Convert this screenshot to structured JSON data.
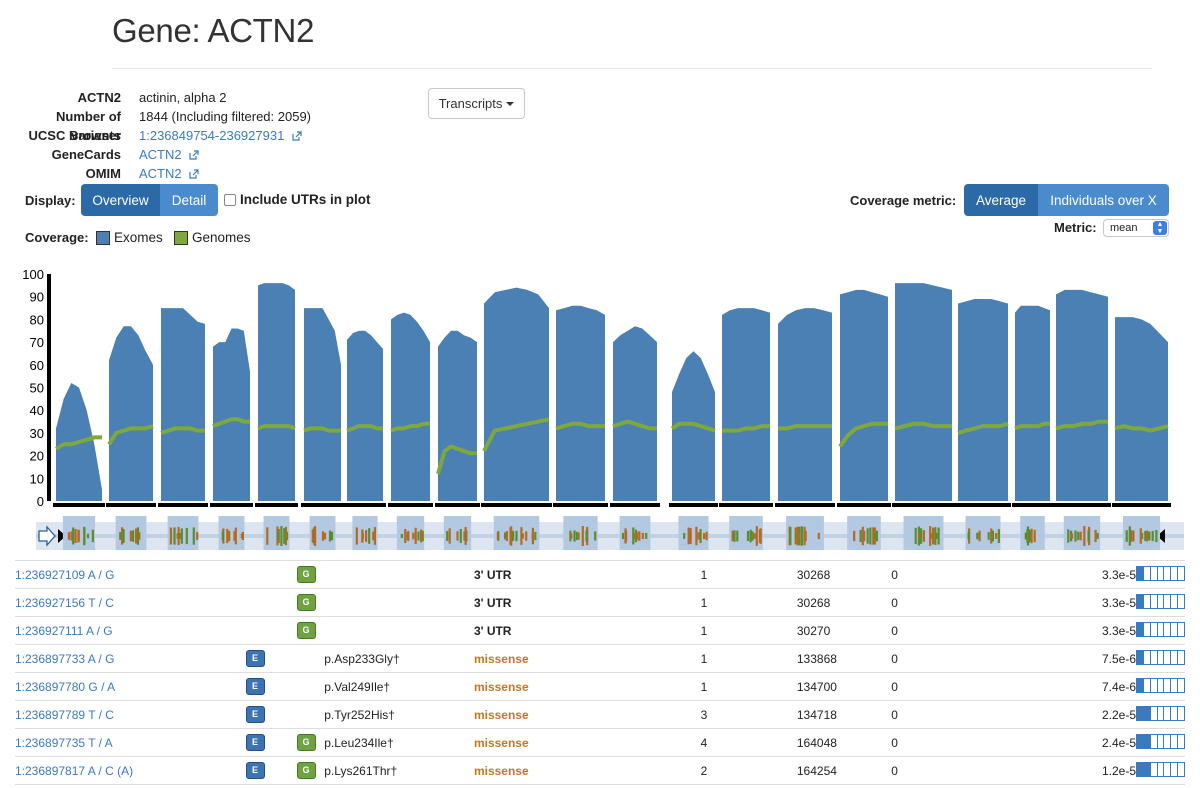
{
  "page": {
    "title": "Gene: ACTN2"
  },
  "gene_info": {
    "rows": [
      {
        "key": "ACTN2",
        "value": "actinin, alpha 2",
        "link": false
      },
      {
        "key": "Number of variants",
        "value": "1844 (Including filtered: 2059)",
        "link": false
      },
      {
        "key": "UCSC Browser",
        "value": "1:236849754-236927931",
        "link": true
      },
      {
        "key": "GeneCards",
        "value": "ACTN2",
        "link": true
      },
      {
        "key": "OMIM",
        "value": "ACTN2",
        "link": true
      }
    ]
  },
  "transcripts_button": {
    "label": "Transcripts"
  },
  "display": {
    "label": "Display:",
    "options": [
      "Overview",
      "Detail"
    ],
    "selected": "Overview",
    "include_utrs_label": "Include UTRs in plot",
    "include_utrs_checked": false
  },
  "coverage": {
    "label": "Coverage:",
    "legend": [
      {
        "name": "Exomes",
        "color": "#4a80b4"
      },
      {
        "name": "Genomes",
        "color": "#7ea83c"
      }
    ]
  },
  "coverage_metric": {
    "label": "Coverage metric:",
    "options": [
      "Average",
      "Individuals over X"
    ],
    "selected": "Average",
    "metric_label": "Metric:",
    "metric_value": "mean"
  },
  "chart_data": {
    "type": "area",
    "ylim": [
      0,
      100
    ],
    "y_ticks": [
      0,
      10,
      20,
      30,
      40,
      50,
      60,
      70,
      80,
      90,
      100
    ],
    "series": [
      {
        "name": "Exomes",
        "color": "#4a80b4",
        "exons": [
          [
            32,
            45,
            52,
            50,
            40,
            25,
            5
          ],
          [
            62,
            72,
            77,
            77,
            73,
            66,
            60
          ],
          [
            85,
            85,
            85,
            85,
            82,
            79,
            78
          ],
          [
            68,
            70,
            70,
            76,
            76,
            75,
            57
          ],
          [
            95,
            96,
            96,
            96,
            96,
            95,
            93
          ],
          [
            85,
            85,
            85,
            85,
            80,
            75,
            60
          ],
          [
            71,
            74,
            75,
            75,
            73,
            70,
            67
          ],
          [
            80,
            82,
            83,
            82,
            79,
            75,
            70
          ],
          [
            68,
            72,
            75,
            75,
            73,
            72,
            70
          ],
          [
            87,
            92,
            93,
            94,
            93,
            91,
            85
          ],
          [
            84,
            85,
            86,
            86,
            85,
            84,
            82
          ],
          [
            70,
            73,
            75,
            77,
            76,
            73,
            70
          ],
          [
            48,
            56,
            63,
            66,
            63,
            56,
            48
          ],
          [
            82,
            84,
            85,
            85,
            85,
            84,
            83
          ],
          [
            78,
            82,
            84,
            85,
            85,
            84,
            83
          ],
          [
            91,
            92,
            93,
            93,
            92,
            91,
            90
          ],
          [
            96,
            96,
            96,
            96,
            95,
            94,
            93
          ],
          [
            87,
            88,
            89,
            89,
            89,
            88,
            87
          ],
          [
            83,
            86,
            86,
            86,
            86,
            85,
            84
          ],
          [
            91,
            93,
            93,
            93,
            92,
            91,
            90
          ],
          [
            81,
            81,
            81,
            80,
            78,
            74,
            70
          ]
        ]
      },
      {
        "name": "Genomes",
        "color": "#7ea83c",
        "exons": [
          [
            23,
            25,
            25,
            26,
            27,
            28,
            28
          ],
          [
            25,
            30,
            31,
            32,
            32,
            32,
            33
          ],
          [
            30,
            31,
            32,
            32,
            32,
            31,
            31
          ],
          [
            33,
            34,
            35,
            36,
            36,
            35,
            35
          ],
          [
            32,
            33,
            33,
            33,
            33,
            33,
            32
          ],
          [
            31,
            32,
            32,
            32,
            31,
            31,
            31
          ],
          [
            31,
            32,
            33,
            33,
            33,
            32,
            32
          ],
          [
            31,
            32,
            32,
            33,
            33,
            34,
            34
          ],
          [
            12,
            22,
            24,
            23,
            22,
            21,
            21
          ],
          [
            22,
            31,
            32,
            33,
            34,
            35,
            36
          ],
          [
            32,
            33,
            34,
            34,
            33,
            33,
            33
          ],
          [
            33,
            34,
            35,
            34,
            33,
            32,
            32
          ],
          [
            32,
            34,
            34,
            34,
            33,
            32,
            31
          ],
          [
            31,
            31,
            31,
            32,
            32,
            33,
            33
          ],
          [
            32,
            32,
            33,
            33,
            33,
            33,
            33
          ],
          [
            24,
            29,
            32,
            33,
            34,
            34,
            34
          ],
          [
            32,
            33,
            34,
            34,
            33,
            33,
            33
          ],
          [
            30,
            31,
            32,
            33,
            33,
            33,
            34
          ],
          [
            32,
            33,
            33,
            33,
            33,
            34,
            34
          ],
          [
            32,
            33,
            33,
            34,
            34,
            35,
            35
          ],
          [
            32,
            33,
            32,
            32,
            31,
            32,
            33
          ]
        ]
      }
    ]
  },
  "variants": {
    "rows": [
      {
        "variant": "1:236927109 A / G",
        "exome": false,
        "genome": true,
        "hgvs": "",
        "consequence": "3' UTR",
        "csq_type": "utr",
        "ac": "1",
        "an": "30268",
        "hom": "0",
        "af": "3.3e-5",
        "freq_fill": 1
      },
      {
        "variant": "1:236927156 T / C",
        "exome": false,
        "genome": true,
        "hgvs": "",
        "consequence": "3' UTR",
        "csq_type": "utr",
        "ac": "1",
        "an": "30268",
        "hom": "0",
        "af": "3.3e-5",
        "freq_fill": 1
      },
      {
        "variant": "1:236927111 A / G",
        "exome": false,
        "genome": true,
        "hgvs": "",
        "consequence": "3' UTR",
        "csq_type": "utr",
        "ac": "1",
        "an": "30270",
        "hom": "0",
        "af": "3.3e-5",
        "freq_fill": 1
      },
      {
        "variant": "1:236897733 A / G",
        "exome": true,
        "genome": false,
        "hgvs": "p.Asp233Gly†",
        "consequence": "missense",
        "csq_type": "missense",
        "ac": "1",
        "an": "133868",
        "hom": "0",
        "af": "7.5e-6",
        "freq_fill": 1
      },
      {
        "variant": "1:236897780 G / A",
        "exome": true,
        "genome": false,
        "hgvs": "p.Val249Ile†",
        "consequence": "missense",
        "csq_type": "missense",
        "ac": "1",
        "an": "134700",
        "hom": "0",
        "af": "7.4e-6",
        "freq_fill": 1
      },
      {
        "variant": "1:236897789 T / C",
        "exome": true,
        "genome": false,
        "hgvs": "p.Tyr252His†",
        "consequence": "missense",
        "csq_type": "missense",
        "ac": "3",
        "an": "134718",
        "hom": "0",
        "af": "2.2e-5",
        "freq_fill": 2
      },
      {
        "variant": "1:236897735 T / A",
        "exome": true,
        "genome": true,
        "hgvs": "p.Leu234Ile†",
        "consequence": "missense",
        "csq_type": "missense",
        "ac": "4",
        "an": "164048",
        "hom": "0",
        "af": "2.4e-5",
        "freq_fill": 2
      },
      {
        "variant": "1:236897817 A / C (A)",
        "exome": true,
        "genome": true,
        "hgvs": "p.Lys261Thr†",
        "consequence": "missense",
        "csq_type": "missense",
        "ac": "2",
        "an": "164254",
        "hom": "0",
        "af": "1.2e-5",
        "freq_fill": 2
      }
    ]
  }
}
